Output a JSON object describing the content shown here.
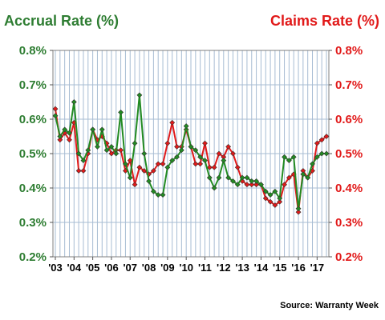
{
  "colors": {
    "accrual": "#228b22",
    "claims": "#e11919",
    "accrual_text": "#2e7d32",
    "claims_text": "#e11919",
    "grid": "#a7bcd3"
  },
  "source": "Source: Warranty Week",
  "chart_data": {
    "type": "line",
    "title": "",
    "left_axis_label": "Accrual Rate (%)",
    "right_axis_label": "Claims Rate (%)",
    "ylim": [
      0.2,
      0.8
    ],
    "yticks": [
      "0.2%",
      "0.3%",
      "0.4%",
      "0.5%",
      "0.6%",
      "0.7%",
      "0.8%"
    ],
    "ytick_values": [
      0.2,
      0.3,
      0.4,
      0.5,
      0.6,
      0.7,
      0.8
    ],
    "xtick_labels": [
      "'03",
      "'04",
      "'05",
      "'06",
      "'07",
      "'08",
      "'09",
      "'10",
      "'11",
      "'12",
      "'13",
      "'14",
      "'15",
      "'16",
      "'17"
    ],
    "x": [
      "2003 Q1",
      "2003 Q2",
      "2003 Q3",
      "2003 Q4",
      "2004 Q1",
      "2004 Q2",
      "2004 Q3",
      "2004 Q4",
      "2005 Q1",
      "2005 Q2",
      "2005 Q3",
      "2005 Q4",
      "2006 Q1",
      "2006 Q2",
      "2006 Q3",
      "2006 Q4",
      "2007 Q1",
      "2007 Q2",
      "2007 Q3",
      "2007 Q4",
      "2008 Q1",
      "2008 Q2",
      "2008 Q3",
      "2008 Q4",
      "2009 Q1",
      "2009 Q2",
      "2009 Q3",
      "2009 Q4",
      "2010 Q1",
      "2010 Q2",
      "2010 Q3",
      "2010 Q4",
      "2011 Q1",
      "2011 Q2",
      "2011 Q3",
      "2011 Q4",
      "2012 Q1",
      "2012 Q2",
      "2012 Q3",
      "2012 Q4",
      "2013 Q1",
      "2013 Q2",
      "2013 Q3",
      "2013 Q4",
      "2014 Q1",
      "2014 Q2",
      "2014 Q3",
      "2014 Q4",
      "2015 Q1",
      "2015 Q2",
      "2015 Q3",
      "2015 Q4",
      "2016 Q1",
      "2016 Q2",
      "2016 Q3",
      "2016 Q4",
      "2017 Q1",
      "2017 Q2",
      "2017 Q3"
    ],
    "series": [
      {
        "axis": "left",
        "values": [
          0.61,
          0.55,
          0.57,
          0.56,
          0.65,
          0.5,
          0.48,
          0.51,
          0.57,
          0.52,
          0.57,
          0.51,
          0.52,
          0.5,
          0.62,
          0.47,
          0.43,
          0.53,
          0.67,
          0.5,
          0.42,
          0.39,
          0.38,
          0.38,
          0.46,
          0.48,
          0.49,
          0.51,
          0.58,
          0.52,
          0.51,
          0.49,
          0.48,
          0.43,
          0.4,
          0.43,
          0.48,
          0.43,
          0.42,
          0.41,
          0.43,
          0.43,
          0.42,
          0.42,
          0.41,
          0.39,
          0.38,
          0.39,
          0.37,
          0.49,
          0.48,
          0.49,
          0.34,
          0.44,
          0.43,
          0.47,
          0.49,
          0.5,
          0.5
        ]
      },
      {
        "axis": "right",
        "values": [
          0.63,
          0.54,
          0.56,
          0.54,
          0.59,
          0.45,
          0.45,
          0.5,
          0.57,
          0.54,
          0.55,
          0.53,
          0.5,
          0.51,
          0.51,
          0.45,
          0.48,
          0.41,
          0.46,
          0.45,
          0.44,
          0.45,
          0.47,
          0.47,
          0.53,
          0.59,
          0.52,
          0.52,
          0.57,
          0.52,
          0.47,
          0.47,
          0.53,
          0.46,
          0.46,
          0.5,
          0.49,
          0.52,
          0.5,
          0.46,
          0.42,
          0.41,
          0.41,
          0.41,
          0.41,
          0.37,
          0.36,
          0.35,
          0.36,
          0.41,
          0.43,
          0.44,
          0.33,
          0.45,
          0.43,
          0.45,
          0.53,
          0.54,
          0.55
        ]
      }
    ]
  }
}
